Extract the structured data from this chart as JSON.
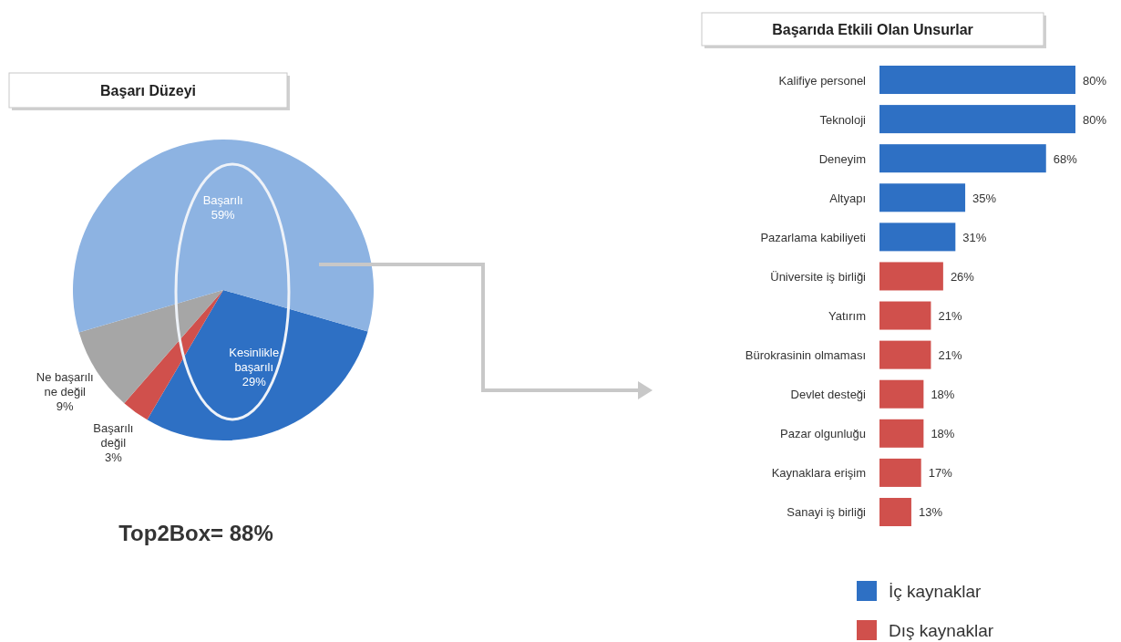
{
  "chart_data": [
    {
      "type": "pie",
      "title": "Başarı Düzeyi",
      "categories": [
        "Kesinlikle başarılı",
        "Başarılı değil",
        "Ne başarılı ne değil",
        "Başarılı"
      ],
      "values": [
        29,
        3,
        9,
        59
      ],
      "value_labels": [
        "29%",
        "3%",
        "9%",
        "59%"
      ],
      "colors": [
        "#2e70c4",
        "#d0504c",
        "#a6a6a6",
        "#8db3e2"
      ],
      "annotations": [
        "Top2Box= 88%"
      ]
    },
    {
      "type": "bar",
      "orientation": "horizontal",
      "title": "Başarıda Etkili Olan Unsurlar",
      "categories": [
        "Kalifiye personel",
        "Teknoloji",
        "Deneyim",
        "Altyapı",
        "Pazarlama kabiliyeti",
        "Üniversite iş birliği",
        "Yatırım",
        "Bürokrasinin olmaması",
        "Devlet desteği",
        "Pazar olgunluğu",
        "Kaynaklara erişim",
        "Sanayi iş birliği"
      ],
      "legend": "bottom",
      "series": [
        {
          "name": "İç kaynaklar",
          "color": "#2e70c4",
          "values": [
            80,
            80,
            68,
            35,
            31,
            null,
            null,
            null,
            null,
            null,
            null,
            null
          ],
          "value_labels": [
            "80%",
            "80%",
            "68%",
            "35%",
            "31%",
            null,
            null,
            null,
            null,
            null,
            null,
            null
          ]
        },
        {
          "name": "Dış kaynaklar",
          "color": "#d0504c",
          "values": [
            null,
            null,
            null,
            null,
            null,
            26,
            21,
            21,
            18,
            18,
            17,
            13
          ],
          "value_labels": [
            null,
            null,
            null,
            null,
            null,
            "26%",
            "21%",
            "21%",
            "18%",
            "18%",
            "17%",
            "13%"
          ]
        }
      ]
    }
  ]
}
